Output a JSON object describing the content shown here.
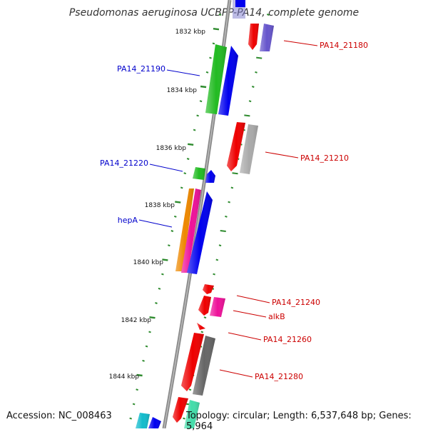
{
  "title": "Pseudomonas aeruginosa UCBPP-PA14, complete genome",
  "footer": {
    "accession": "Accession: NC_008463",
    "topology": "Topology: circular; Length: 6,537,648 bp; Genes: 5,964"
  },
  "ticks": [
    {
      "label": "1832 kbp"
    },
    {
      "label": "1834 kbp"
    },
    {
      "label": "1836 kbp"
    },
    {
      "label": "1838 kbp"
    },
    {
      "label": "1840 kbp"
    },
    {
      "label": "1842 kbp"
    },
    {
      "label": "1844 kbp"
    }
  ],
  "gene_labels": [
    {
      "text": "PA14_21180",
      "color": "#cc0000"
    },
    {
      "text": "PA14_21190",
      "color": "#0000cc"
    },
    {
      "text": "PA14_21210",
      "color": "#cc0000"
    },
    {
      "text": "PA14_21220",
      "color": "#0000cc"
    },
    {
      "text": "hepA",
      "color": "#0000cc"
    },
    {
      "text": "PA14_21240",
      "color": "#cc0000"
    },
    {
      "text": "alkB",
      "color": "#cc0000"
    },
    {
      "text": "PA14_21260",
      "color": "#cc0000"
    },
    {
      "text": "PA14_21280",
      "color": "#cc0000"
    }
  ],
  "colors": {
    "backbone": "#8a8a8a",
    "tick": "#2e8b2e",
    "red": "#ee0000",
    "blue": "#0000ee",
    "green": "#22bb22",
    "purple": "#6655cc",
    "gray": "#aaaaaa",
    "darkgray": "#666666",
    "orange": "#ee8800",
    "pink": "#ee1199",
    "cyan": "#11bbcc"
  }
}
